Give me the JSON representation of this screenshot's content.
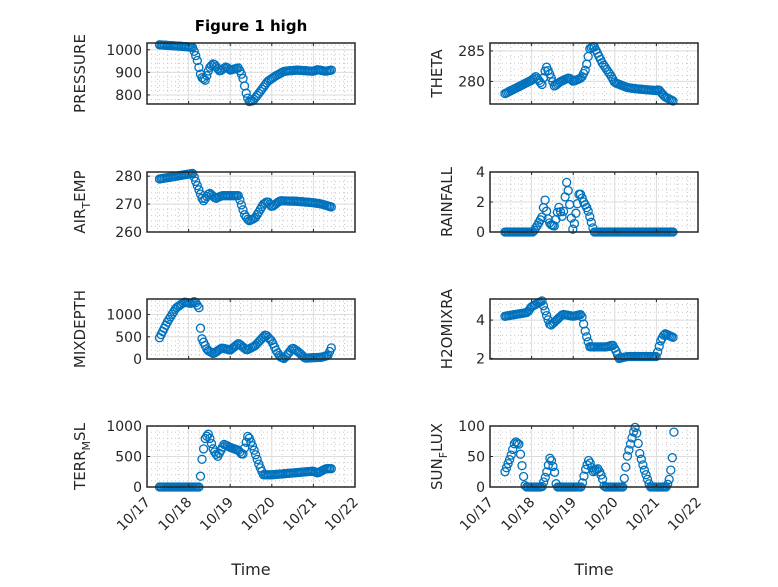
{
  "chart_data": [
    {
      "type": "scatter",
      "id": "pressure",
      "title": "Figure 1 high",
      "ylabel": {
        "main": "PRESSURE",
        "sub": "",
        "rest": ""
      },
      "ylim": [
        760,
        1030
      ],
      "yticks": [
        800,
        900,
        1000
      ],
      "ytick_labels": [
        "800",
        "900",
        "1000"
      ],
      "keypoints": [
        [
          0.3,
          1022
        ],
        [
          1.0,
          1013
        ],
        [
          1.1,
          1010
        ],
        [
          1.2,
          960
        ],
        [
          1.3,
          880
        ],
        [
          1.4,
          865
        ],
        [
          1.5,
          920
        ],
        [
          1.6,
          940
        ],
        [
          1.75,
          905
        ],
        [
          1.9,
          925
        ],
        [
          2.0,
          910
        ],
        [
          2.2,
          920
        ],
        [
          2.3,
          880
        ],
        [
          2.38,
          810
        ],
        [
          2.45,
          770
        ],
        [
          2.55,
          775
        ],
        [
          2.7,
          810
        ],
        [
          2.9,
          860
        ],
        [
          3.1,
          885
        ],
        [
          3.3,
          905
        ],
        [
          3.6,
          910
        ],
        [
          4.0,
          905
        ],
        [
          4.1,
          912
        ],
        [
          4.3,
          905
        ],
        [
          4.43,
          910
        ]
      ]
    },
    {
      "type": "scatter",
      "id": "theta",
      "title": "",
      "ylabel": {
        "main": "THETA",
        "sub": "",
        "rest": ""
      },
      "ylim": [
        276.3,
        286.3
      ],
      "yticks": [
        280,
        285
      ],
      "ytick_labels": [
        "280",
        "285"
      ],
      "keypoints": [
        [
          0.36,
          278
        ],
        [
          1.0,
          280.2
        ],
        [
          1.1,
          280.8
        ],
        [
          1.25,
          279.5
        ],
        [
          1.35,
          282.5
        ],
        [
          1.45,
          281
        ],
        [
          1.55,
          279.2
        ],
        [
          1.7,
          280
        ],
        [
          1.9,
          280.6
        ],
        [
          2.0,
          280
        ],
        [
          2.2,
          280.6
        ],
        [
          2.3,
          282
        ],
        [
          2.4,
          285.4
        ],
        [
          2.5,
          285.8
        ],
        [
          2.7,
          283
        ],
        [
          2.9,
          281
        ],
        [
          3.0,
          279.8
        ],
        [
          3.3,
          279
        ],
        [
          3.5,
          278.8
        ],
        [
          4.0,
          278.5
        ],
        [
          4.05,
          278.7
        ],
        [
          4.2,
          277.5
        ],
        [
          4.4,
          276.8
        ]
      ]
    },
    {
      "type": "scatter",
      "id": "air_temp",
      "title": "",
      "ylabel": {
        "main": "AIR",
        "sub": "T",
        "rest": "EMP"
      },
      "ylim": [
        260,
        281.5
      ],
      "yticks": [
        260,
        270,
        280
      ],
      "ytick_labels": [
        "260",
        "270",
        "280"
      ],
      "keypoints": [
        [
          0.3,
          279
        ],
        [
          1.1,
          281
        ],
        [
          1.2,
          277
        ],
        [
          1.35,
          271
        ],
        [
          1.5,
          274
        ],
        [
          1.65,
          272
        ],
        [
          1.8,
          273
        ],
        [
          2.0,
          273
        ],
        [
          2.2,
          273
        ],
        [
          2.35,
          266
        ],
        [
          2.45,
          264
        ],
        [
          2.6,
          265
        ],
        [
          2.8,
          270
        ],
        [
          2.9,
          271
        ],
        [
          3.0,
          269
        ],
        [
          3.2,
          271.2
        ],
        [
          3.6,
          271
        ],
        [
          4.0,
          270.5
        ],
        [
          4.2,
          270
        ],
        [
          4.43,
          269
        ]
      ]
    },
    {
      "type": "scatter",
      "id": "rainfall",
      "title": "",
      "ylabel": {
        "main": "RAINFALL",
        "sub": "",
        "rest": ""
      },
      "ylim": [
        0,
        4
      ],
      "yticks": [
        0,
        2,
        4
      ],
      "ytick_labels": [
        "0",
        "2",
        "4"
      ],
      "keypoints": [
        [
          0.36,
          0
        ],
        [
          1.04,
          0
        ],
        [
          1.15,
          0.5
        ],
        [
          1.25,
          1.0
        ],
        [
          1.32,
          2.2
        ],
        [
          1.38,
          1.0
        ],
        [
          1.45,
          0.5
        ],
        [
          1.55,
          0.4
        ],
        [
          1.65,
          1.7
        ],
        [
          1.75,
          0.9
        ],
        [
          1.85,
          3.5
        ],
        [
          1.95,
          1.0
        ],
        [
          2.0,
          0
        ],
        [
          2.05,
          1.0
        ],
        [
          2.15,
          2.7
        ],
        [
          2.25,
          2.0
        ],
        [
          2.35,
          1.5
        ],
        [
          2.45,
          0.5
        ],
        [
          2.5,
          0
        ],
        [
          4.4,
          0
        ]
      ]
    },
    {
      "type": "scatter",
      "id": "mixdepth",
      "title": "",
      "ylabel": {
        "main": "MIXDEPTH",
        "sub": "",
        "rest": ""
      },
      "ylim": [
        0,
        1350
      ],
      "yticks": [
        0,
        500,
        1000
      ],
      "ytick_labels": [
        "0",
        "500",
        "1000"
      ],
      "keypoints": [
        [
          0.3,
          480
        ],
        [
          0.5,
          850
        ],
        [
          0.7,
          1150
        ],
        [
          0.9,
          1280
        ],
        [
          1.05,
          1250
        ],
        [
          1.15,
          1300
        ],
        [
          1.25,
          1150
        ],
        [
          1.3,
          500
        ],
        [
          1.45,
          200
        ],
        [
          1.6,
          120
        ],
        [
          1.8,
          250
        ],
        [
          2.0,
          200
        ],
        [
          2.2,
          350
        ],
        [
          2.4,
          200
        ],
        [
          2.6,
          300
        ],
        [
          2.85,
          550
        ],
        [
          3.0,
          400
        ],
        [
          3.1,
          200
        ],
        [
          3.2,
          50
        ],
        [
          3.3,
          10
        ],
        [
          3.5,
          250
        ],
        [
          3.65,
          150
        ],
        [
          3.8,
          20
        ],
        [
          4.2,
          40
        ],
        [
          4.35,
          80
        ],
        [
          4.43,
          250
        ]
      ]
    },
    {
      "type": "scatter",
      "id": "h2omixra",
      "title": "",
      "ylabel": {
        "main": "H2OMIXRA",
        "sub": "",
        "rest": ""
      },
      "ylim": [
        1.97,
        5.1
      ],
      "yticks": [
        2,
        4
      ],
      "ytick_labels": [
        "2",
        "4"
      ],
      "keypoints": [
        [
          0.36,
          4.2
        ],
        [
          0.9,
          4.4
        ],
        [
          1.0,
          4.7
        ],
        [
          1.25,
          5.0
        ],
        [
          1.35,
          4.3
        ],
        [
          1.45,
          3.7
        ],
        [
          1.6,
          4.0
        ],
        [
          1.75,
          4.3
        ],
        [
          2.0,
          4.2
        ],
        [
          2.2,
          4.3
        ],
        [
          2.3,
          3.3
        ],
        [
          2.4,
          2.6
        ],
        [
          2.8,
          2.6
        ],
        [
          2.95,
          2.7
        ],
        [
          3.05,
          2.3
        ],
        [
          3.1,
          2.0
        ],
        [
          3.3,
          2.1
        ],
        [
          4.0,
          2.1
        ],
        [
          4.1,
          2.9
        ],
        [
          4.2,
          3.3
        ],
        [
          4.4,
          3.1
        ]
      ]
    },
    {
      "type": "scatter",
      "id": "terr_msl",
      "title": "",
      "ylabel": {
        "main": "TERR",
        "sub": "M",
        "rest": "SL"
      },
      "ylim": [
        0,
        1000
      ],
      "yticks": [
        0,
        500,
        1000
      ],
      "ytick_labels": [
        "0",
        "500",
        "1000"
      ],
      "keypoints": [
        [
          0.3,
          0
        ],
        [
          1.27,
          0
        ],
        [
          1.3,
          350
        ],
        [
          1.4,
          800
        ],
        [
          1.48,
          870
        ],
        [
          1.6,
          600
        ],
        [
          1.7,
          500
        ],
        [
          1.85,
          700
        ],
        [
          2.0,
          650
        ],
        [
          2.2,
          600
        ],
        [
          2.3,
          520
        ],
        [
          2.43,
          850
        ],
        [
          2.55,
          650
        ],
        [
          2.7,
          350
        ],
        [
          2.8,
          200
        ],
        [
          3.0,
          200
        ],
        [
          3.5,
          230
        ],
        [
          4.0,
          260
        ],
        [
          4.1,
          230
        ],
        [
          4.3,
          300
        ],
        [
          4.43,
          300
        ]
      ]
    },
    {
      "type": "scatter",
      "id": "sun_flux",
      "title": "",
      "ylabel": {
        "main": "SUN",
        "sub": "F",
        "rest": "LUX"
      },
      "ylim": [
        0,
        100
      ],
      "yticks": [
        0,
        50,
        100
      ],
      "ytick_labels": [
        "0",
        "50",
        "100"
      ],
      "keypoints": [
        [
          0.36,
          25
        ],
        [
          0.5,
          50
        ],
        [
          0.6,
          75
        ],
        [
          0.7,
          70
        ],
        [
          0.8,
          20
        ],
        [
          0.85,
          0
        ],
        [
          1.25,
          0
        ],
        [
          1.35,
          20
        ],
        [
          1.45,
          50
        ],
        [
          1.55,
          25
        ],
        [
          1.6,
          0
        ],
        [
          2.2,
          0
        ],
        [
          2.3,
          30
        ],
        [
          2.38,
          45
        ],
        [
          2.48,
          25
        ],
        [
          2.6,
          30
        ],
        [
          2.7,
          15
        ],
        [
          2.75,
          0
        ],
        [
          3.2,
          0
        ],
        [
          3.3,
          50
        ],
        [
          3.45,
          90
        ],
        [
          3.5,
          100
        ],
        [
          3.6,
          55
        ],
        [
          3.7,
          30
        ],
        [
          3.85,
          0
        ],
        [
          4.25,
          0
        ],
        [
          4.32,
          15
        ],
        [
          4.38,
          45
        ],
        [
          4.42,
          90
        ]
      ]
    }
  ],
  "x_axis": {
    "xlim": [
      0,
      5
    ],
    "x_unit": "days since 10/17",
    "xticks": [
      0,
      1,
      2,
      3,
      4,
      5
    ],
    "xtick_labels": [
      "10/17",
      "10/18",
      "10/19",
      "10/20",
      "10/21",
      "10/22"
    ],
    "xlabel": "Time"
  },
  "colors": {
    "marker": "#0072BD",
    "axes": "#262626",
    "grid": "#dcdcdc"
  }
}
